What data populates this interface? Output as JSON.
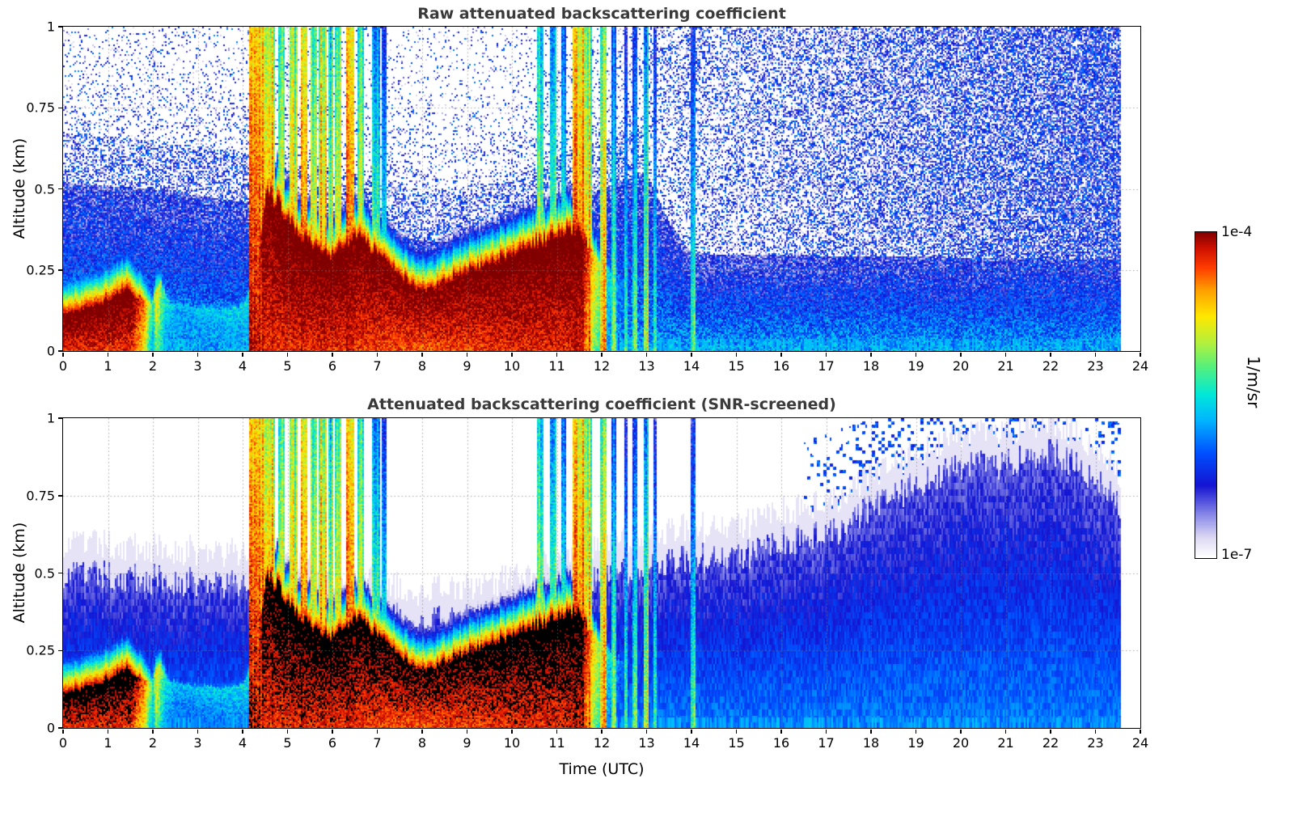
{
  "chart_data": {
    "type": "heatmap",
    "panels": [
      {
        "title": "Raw attenuated backscattering coefficient",
        "screened": false
      },
      {
        "title": "Attenuated backscattering coefficient (SNR-screened)",
        "screened": true
      }
    ],
    "x_axis": {
      "label": "Time (UTC)",
      "min": 0,
      "max": 24,
      "ticks": [
        0,
        1,
        2,
        3,
        4,
        5,
        6,
        7,
        8,
        9,
        10,
        11,
        12,
        13,
        14,
        15,
        16,
        17,
        18,
        19,
        20,
        21,
        22,
        23,
        24
      ],
      "tick_labels": [
        "0",
        "1",
        "2",
        "3",
        "4",
        "5",
        "6",
        "7",
        "8",
        "9",
        "10",
        "11",
        "12",
        "13",
        "14",
        "15",
        "16",
        "17",
        "18",
        "19",
        "20",
        "21",
        "22",
        "23",
        "24"
      ]
    },
    "y_axis": {
      "label": "Altitude (km)",
      "min": 0,
      "max": 1,
      "ticks": [
        0,
        0.25,
        0.5,
        0.75,
        1
      ],
      "tick_labels": [
        "0",
        "0.25",
        "0.5",
        "0.75",
        "1"
      ]
    },
    "colorbar": {
      "top_label": "1e-4",
      "bottom_label": "1e-7",
      "unit_label": "1/m/sr",
      "scale": "log10",
      "min_value": 1e-07,
      "max_value": 0.0001
    },
    "colormap": [
      [
        0.0,
        "#ffffff"
      ],
      [
        0.06,
        "#dcd8f2"
      ],
      [
        0.13,
        "#8888e8"
      ],
      [
        0.22,
        "#1414d2"
      ],
      [
        0.32,
        "#0050ff"
      ],
      [
        0.42,
        "#00b4ff"
      ],
      [
        0.5,
        "#00e8d8"
      ],
      [
        0.58,
        "#50f080"
      ],
      [
        0.66,
        "#b4f03c"
      ],
      [
        0.74,
        "#ffe800"
      ],
      [
        0.82,
        "#ffa000"
      ],
      [
        0.89,
        "#ff3c00"
      ],
      [
        0.95,
        "#cd1000"
      ],
      [
        1.0,
        "#800000"
      ]
    ],
    "log_range": [
      -7,
      -4
    ],
    "data_end_utc": 23.55,
    "boundary_layer": {
      "t": [
        0,
        0.5,
        1,
        1.4,
        1.8,
        2.0,
        2.15,
        2.35,
        3,
        3.5,
        4,
        4.3,
        4.55,
        4.8,
        5,
        5.3,
        5.6,
        6,
        6.3,
        6.6,
        7,
        7.4,
        7.8,
        8.2,
        8.6,
        9,
        9.5,
        10,
        10.5,
        11,
        11.5,
        11.75,
        12,
        12.5,
        13,
        24
      ],
      "height_km": [
        0.11,
        0.13,
        0.16,
        0.19,
        0.16,
        0.15,
        0.22,
        0.15,
        0.14,
        0.13,
        0.14,
        0.22,
        0.5,
        0.45,
        0.42,
        0.36,
        0.32,
        0.29,
        0.33,
        0.35,
        0.3,
        0.25,
        0.2,
        0.19,
        0.22,
        0.25,
        0.27,
        0.3,
        0.33,
        0.35,
        0.38,
        0.32,
        0.26,
        0.22,
        0.2,
        0.15
      ],
      "peak_t": [
        0,
        1.5,
        1.8,
        2.0,
        2.08,
        2.3,
        2.6,
        4.2,
        4.45,
        5,
        6,
        7,
        8,
        9,
        10,
        11,
        11.55,
        11.8,
        12.1,
        12.6,
        13,
        24
      ],
      "peak_log10": [
        -3.8,
        -3.8,
        -4.3,
        -5.4,
        -4.7,
        -5.5,
        -5.7,
        -5.5,
        -3.85,
        -3.8,
        -3.8,
        -3.85,
        -3.9,
        -3.85,
        -3.8,
        -3.78,
        -3.78,
        -4.6,
        -5.4,
        -6.2,
        -6.6,
        -6.8
      ]
    },
    "background_top_km": {
      "t": [
        0,
        2,
        4,
        6,
        8,
        9,
        10,
        11,
        12,
        13,
        13.5,
        14,
        24
      ],
      "height_km": [
        0.52,
        0.5,
        0.46,
        0.4,
        0.34,
        0.33,
        0.38,
        0.45,
        0.5,
        0.55,
        0.4,
        0.3,
        0.28
      ]
    },
    "screen_top_km": {
      "t": [
        0,
        2,
        4,
        6,
        8,
        10,
        11,
        12,
        13,
        14,
        15,
        16,
        17,
        17.5,
        18,
        19,
        20,
        21,
        22,
        23,
        23.55
      ],
      "height_km": [
        0.5,
        0.48,
        0.46,
        0.4,
        0.34,
        0.38,
        0.45,
        0.5,
        0.52,
        0.55,
        0.55,
        0.6,
        0.62,
        0.66,
        0.72,
        0.78,
        0.85,
        0.85,
        0.9,
        0.8,
        0.72
      ]
    },
    "rain_events": [
      {
        "t0": 4.15,
        "t1": 4.5,
        "s": 1.0
      },
      {
        "t0": 4.5,
        "t1": 4.72,
        "s": 0.88
      },
      {
        "t0": 4.78,
        "t1": 4.95,
        "s": 0.72
      },
      {
        "t0": 5.05,
        "t1": 5.22,
        "s": 0.8
      },
      {
        "t0": 5.3,
        "t1": 5.45,
        "s": 0.92
      },
      {
        "t0": 5.5,
        "t1": 5.66,
        "s": 0.75
      },
      {
        "t0": 5.7,
        "t1": 5.86,
        "s": 0.85
      },
      {
        "t0": 5.9,
        "t1": 6.02,
        "s": 0.7
      },
      {
        "t0": 6.06,
        "t1": 6.2,
        "s": 0.8
      },
      {
        "t0": 6.3,
        "t1": 6.5,
        "s": 0.9
      },
      {
        "t0": 6.55,
        "t1": 6.7,
        "s": 0.72
      },
      {
        "t0": 6.9,
        "t1": 7.05,
        "s": 0.6
      },
      {
        "t0": 7.1,
        "t1": 7.2,
        "s": 0.5
      },
      {
        "t0": 10.55,
        "t1": 10.72,
        "s": 0.65
      },
      {
        "t0": 10.85,
        "t1": 11.0,
        "s": 0.58
      },
      {
        "t0": 11.1,
        "t1": 11.2,
        "s": 0.5
      },
      {
        "t0": 11.35,
        "t1": 11.62,
        "s": 0.95
      },
      {
        "t0": 11.62,
        "t1": 11.8,
        "s": 0.8
      },
      {
        "t0": 11.95,
        "t1": 12.12,
        "s": 0.75
      },
      {
        "t0": 12.2,
        "t1": 12.32,
        "s": 0.55
      },
      {
        "t0": 12.5,
        "t1": 12.56,
        "s": 0.42
      },
      {
        "t0": 12.7,
        "t1": 12.78,
        "s": 0.45
      },
      {
        "t0": 12.95,
        "t1": 13.05,
        "s": 0.6
      },
      {
        "t0": 13.15,
        "t1": 13.22,
        "s": 0.45
      },
      {
        "t0": 14.0,
        "t1": 14.08,
        "s": 0.45
      }
    ],
    "noise": {
      "raw_speckle_far_start": 13,
      "raw_speckle_max_p": 0.85
    }
  }
}
